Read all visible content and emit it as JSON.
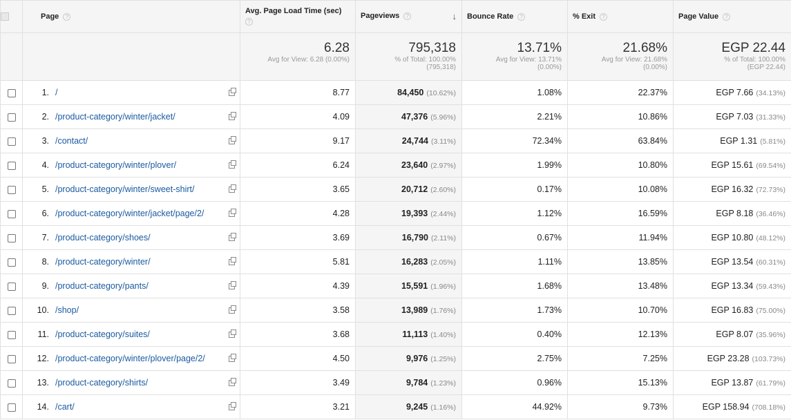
{
  "header": {
    "page": "Page",
    "load_time": "Avg. Page Load Time (sec)",
    "pageviews": "Pageviews",
    "bounce_rate": "Bounce Rate",
    "exit": "% Exit",
    "page_value": "Page Value",
    "help": "?",
    "sort_arrow": "↓"
  },
  "totals": {
    "load_time": "6.28",
    "load_time_sub": "Avg for View: 6.28 (0.00%)",
    "pageviews": "795,318",
    "pageviews_sub1": "% of Total: 100.00%",
    "pageviews_sub2": "(795,318)",
    "bounce_rate": "13.71%",
    "bounce_sub1": "Avg for View: 13.71%",
    "bounce_sub2": "(0.00%)",
    "exit": "21.68%",
    "exit_sub1": "Avg for View: 21.68%",
    "exit_sub2": "(0.00%)",
    "page_value": "EGP 22.44",
    "page_value_sub1": "% of Total: 100.00%",
    "page_value_sub2": "(EGP 22.44)"
  },
  "rows": [
    {
      "idx": "1.",
      "page": "/",
      "load": "8.77",
      "pv": "84,450",
      "pv_pct": "(10.62%)",
      "bounce": "1.08%",
      "exit": "22.37%",
      "value": "EGP 7.66",
      "value_pct": "(34.13%)"
    },
    {
      "idx": "2.",
      "page": "/product-category/winter/jacket/",
      "load": "4.09",
      "pv": "47,376",
      "pv_pct": "(5.96%)",
      "bounce": "2.21%",
      "exit": "10.86%",
      "value": "EGP 7.03",
      "value_pct": "(31.33%)"
    },
    {
      "idx": "3.",
      "page": "/contact/",
      "load": "9.17",
      "pv": "24,744",
      "pv_pct": "(3.11%)",
      "bounce": "72.34%",
      "exit": "63.84%",
      "value": "EGP 1.31",
      "value_pct": "(5.81%)"
    },
    {
      "idx": "4.",
      "page": "/product-category/winter/plover/",
      "load": "6.24",
      "pv": "23,640",
      "pv_pct": "(2.97%)",
      "bounce": "1.99%",
      "exit": "10.80%",
      "value": "EGP 15.61",
      "value_pct": "(69.54%)"
    },
    {
      "idx": "5.",
      "page": "/product-category/winter/sweet-shirt/",
      "load": "3.65",
      "pv": "20,712",
      "pv_pct": "(2.60%)",
      "bounce": "0.17%",
      "exit": "10.08%",
      "value": "EGP 16.32",
      "value_pct": "(72.73%)"
    },
    {
      "idx": "6.",
      "page": "/product-category/winter/jacket/page/2/",
      "load": "4.28",
      "pv": "19,393",
      "pv_pct": "(2.44%)",
      "bounce": "1.12%",
      "exit": "16.59%",
      "value": "EGP 8.18",
      "value_pct": "(36.46%)"
    },
    {
      "idx": "7.",
      "page": "/product-category/shoes/",
      "load": "3.69",
      "pv": "16,790",
      "pv_pct": "(2.11%)",
      "bounce": "0.67%",
      "exit": "11.94%",
      "value": "EGP 10.80",
      "value_pct": "(48.12%)"
    },
    {
      "idx": "8.",
      "page": "/product-category/winter/",
      "load": "5.81",
      "pv": "16,283",
      "pv_pct": "(2.05%)",
      "bounce": "1.11%",
      "exit": "13.85%",
      "value": "EGP 13.54",
      "value_pct": "(60.31%)"
    },
    {
      "idx": "9.",
      "page": "/product-category/pants/",
      "load": "4.39",
      "pv": "15,591",
      "pv_pct": "(1.96%)",
      "bounce": "1.68%",
      "exit": "13.48%",
      "value": "EGP 13.34",
      "value_pct": "(59.43%)"
    },
    {
      "idx": "10.",
      "page": "/shop/",
      "load": "3.58",
      "pv": "13,989",
      "pv_pct": "(1.76%)",
      "bounce": "1.73%",
      "exit": "10.70%",
      "value": "EGP 16.83",
      "value_pct": "(75.00%)"
    },
    {
      "idx": "11.",
      "page": "/product-category/suites/",
      "load": "3.68",
      "pv": "11,113",
      "pv_pct": "(1.40%)",
      "bounce": "0.40%",
      "exit": "12.13%",
      "value": "EGP 8.07",
      "value_pct": "(35.96%)"
    },
    {
      "idx": "12.",
      "page": "/product-category/winter/plover/page/2/",
      "load": "4.50",
      "pv": "9,976",
      "pv_pct": "(1.25%)",
      "bounce": "2.75%",
      "exit": "7.25%",
      "value": "EGP 23.28",
      "value_pct": "(103.73%)"
    },
    {
      "idx": "13.",
      "page": "/product-category/shirts/",
      "load": "3.49",
      "pv": "9,784",
      "pv_pct": "(1.23%)",
      "bounce": "0.96%",
      "exit": "15.13%",
      "value": "EGP 13.87",
      "value_pct": "(61.79%)"
    },
    {
      "idx": "14.",
      "page": "/cart/",
      "load": "3.21",
      "pv": "9,245",
      "pv_pct": "(1.16%)",
      "bounce": "44.92%",
      "exit": "9.73%",
      "value": "EGP 158.94",
      "value_pct": "(708.18%)"
    }
  ]
}
